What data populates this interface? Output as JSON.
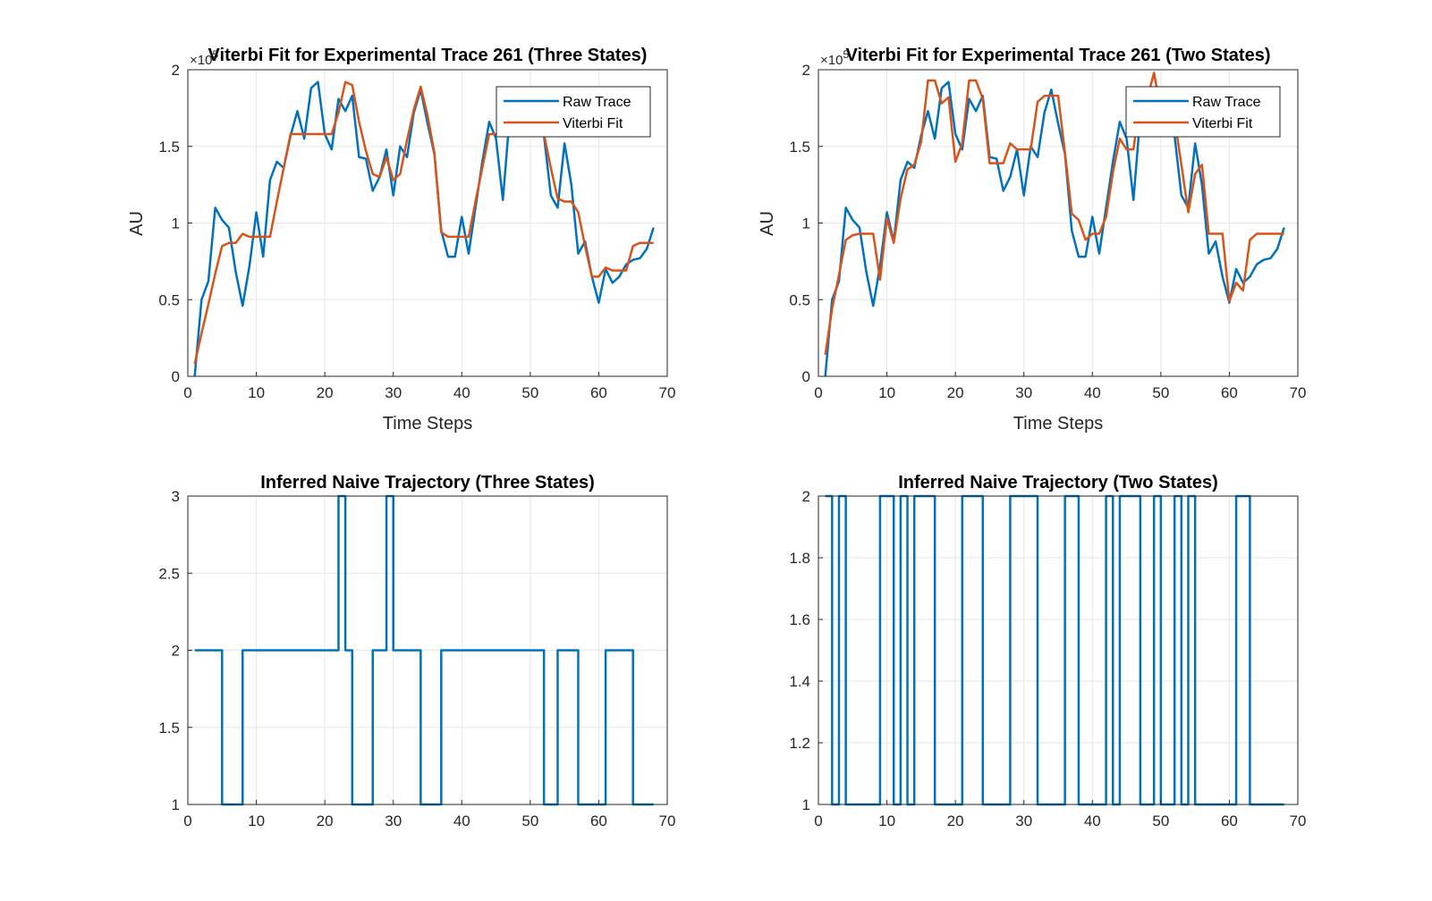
{
  "chart_data": [
    {
      "type": "line",
      "title": "Viterbi Fit for Experimental Trace 261 (Three States)",
      "xlabel": "Time Steps",
      "ylabel": "AU",
      "y_exponent_label": "×10^5",
      "xlim": [
        0,
        70
      ],
      "ylim": [
        0,
        200000
      ],
      "xticks": [
        0,
        10,
        20,
        30,
        40,
        50,
        60,
        70
      ],
      "yticks": [
        0,
        50000,
        100000,
        150000,
        200000
      ],
      "ytick_labels": [
        "0",
        "0.5",
        "1",
        "1.5",
        "2"
      ],
      "grid": true,
      "legend": "top-right",
      "x": [
        1,
        2,
        3,
        4,
        5,
        6,
        7,
        8,
        9,
        10,
        11,
        12,
        13,
        14,
        15,
        16,
        17,
        18,
        19,
        20,
        21,
        22,
        23,
        24,
        25,
        26,
        27,
        28,
        29,
        30,
        31,
        32,
        33,
        34,
        35,
        36,
        37,
        38,
        39,
        40,
        41,
        42,
        43,
        44,
        45,
        46,
        47,
        48,
        49,
        50,
        51,
        52,
        53,
        54,
        55,
        56,
        57,
        58,
        59,
        60,
        61,
        62,
        63,
        64,
        65,
        66,
        67,
        68
      ],
      "series": [
        {
          "name": "Raw Trace",
          "color": "#0072BD",
          "values": [
            0,
            50000,
            62000,
            110000,
            102000,
            97000,
            68000,
            46000,
            72000,
            107000,
            78000,
            128000,
            140000,
            136000,
            157000,
            173000,
            155000,
            188000,
            192000,
            158000,
            148000,
            181000,
            173000,
            183000,
            143000,
            142000,
            121000,
            130000,
            148000,
            118000,
            150000,
            143000,
            172000,
            187000,
            165000,
            145000,
            95000,
            78000,
            78000,
            104000,
            80000,
            110000,
            140000,
            166000,
            155000,
            115000,
            170000,
            177000,
            168000,
            163000,
            162000,
            157000,
            118000,
            110000,
            152000,
            125000,
            80000,
            88000,
            65000,
            48000,
            70000,
            61000,
            65000,
            73000,
            76000,
            77000,
            83000,
            97000
          ]
        },
        {
          "name": "Viterbi Fit",
          "color": "#D95319",
          "values": [
            8000,
            28000,
            47000,
            67000,
            85000,
            87000,
            87000,
            93000,
            91000,
            91000,
            91000,
            91000,
            114000,
            136000,
            158000,
            158000,
            158000,
            158000,
            158000,
            158000,
            158000,
            172000,
            192000,
            190000,
            166000,
            147000,
            132000,
            130000,
            143000,
            128000,
            132000,
            154000,
            174000,
            189000,
            170000,
            146000,
            94000,
            91000,
            91000,
            91000,
            91000,
            114000,
            136000,
            158000,
            158000,
            158000,
            158000,
            158000,
            158000,
            158000,
            158000,
            158000,
            136000,
            116000,
            114000,
            114000,
            107000,
            85000,
            65000,
            65000,
            71000,
            69000,
            69000,
            69000,
            85000,
            87000,
            87000,
            87000
          ]
        }
      ]
    },
    {
      "type": "line",
      "title": "Viterbi Fit for Experimental Trace  261 (Two States)",
      "xlabel": "Time Steps",
      "ylabel": "AU",
      "y_exponent_label": "×10^5",
      "xlim": [
        0,
        70
      ],
      "ylim": [
        0,
        200000
      ],
      "xticks": [
        0,
        10,
        20,
        30,
        40,
        50,
        60,
        70
      ],
      "yticks": [
        0,
        50000,
        100000,
        150000,
        200000
      ],
      "ytick_labels": [
        "0",
        "0.5",
        "1",
        "1.5",
        "2"
      ],
      "grid": true,
      "legend": "top-right",
      "x": [
        1,
        2,
        3,
        4,
        5,
        6,
        7,
        8,
        9,
        10,
        11,
        12,
        13,
        14,
        15,
        16,
        17,
        18,
        19,
        20,
        21,
        22,
        23,
        24,
        25,
        26,
        27,
        28,
        29,
        30,
        31,
        32,
        33,
        34,
        35,
        36,
        37,
        38,
        39,
        40,
        41,
        42,
        43,
        44,
        45,
        46,
        47,
        48,
        49,
        50,
        51,
        52,
        53,
        54,
        55,
        56,
        57,
        58,
        59,
        60,
        61,
        62,
        63,
        64,
        65,
        66,
        67,
        68
      ],
      "series": [
        {
          "name": "Raw Trace",
          "color": "#0072BD",
          "values": [
            0,
            50000,
            62000,
            110000,
            102000,
            97000,
            68000,
            46000,
            72000,
            107000,
            88000,
            128000,
            140000,
            136000,
            157000,
            173000,
            155000,
            188000,
            192000,
            158000,
            148000,
            181000,
            173000,
            183000,
            143000,
            142000,
            121000,
            130000,
            148000,
            118000,
            150000,
            143000,
            172000,
            187000,
            165000,
            145000,
            95000,
            78000,
            78000,
            104000,
            80000,
            110000,
            140000,
            166000,
            155000,
            115000,
            170000,
            177000,
            168000,
            163000,
            162000,
            157000,
            118000,
            110000,
            152000,
            125000,
            80000,
            88000,
            65000,
            48000,
            70000,
            61000,
            65000,
            73000,
            76000,
            77000,
            83000,
            97000
          ]
        },
        {
          "name": "Viterbi Fit",
          "color": "#D95319",
          "values": [
            14000,
            44000,
            66000,
            89000,
            92000,
            93000,
            93000,
            93000,
            63000,
            103000,
            87000,
            116000,
            135000,
            138000,
            153000,
            193000,
            193000,
            178000,
            182000,
            140000,
            152000,
            193000,
            193000,
            181000,
            139000,
            139000,
            139000,
            152000,
            148000,
            148000,
            148000,
            179000,
            183000,
            183000,
            183000,
            146000,
            106000,
            102000,
            89000,
            93000,
            93000,
            104000,
            133000,
            155000,
            148000,
            148000,
            181000,
            181000,
            198000,
            173000,
            162000,
            168000,
            138000,
            107000,
            132000,
            138000,
            93000,
            93000,
            93000,
            49000,
            61000,
            56000,
            89000,
            93000,
            93000,
            93000,
            93000,
            93000
          ]
        }
      ]
    },
    {
      "type": "line",
      "title": "Inferred Naive Trajectory (Three States)",
      "xlabel": "",
      "ylabel": "",
      "xlim": [
        0,
        70
      ],
      "ylim": [
        1,
        3
      ],
      "xticks": [
        0,
        10,
        20,
        30,
        40,
        50,
        60,
        70
      ],
      "yticks": [
        1,
        1.5,
        2,
        2.5,
        3
      ],
      "ytick_labels": [
        "1",
        "1.5",
        "2",
        "2.5",
        "3"
      ],
      "grid": true,
      "step": true,
      "x": [
        1,
        2,
        3,
        4,
        5,
        6,
        7,
        8,
        9,
        10,
        11,
        12,
        13,
        14,
        15,
        16,
        17,
        18,
        19,
        20,
        21,
        22,
        23,
        24,
        25,
        26,
        27,
        28,
        29,
        30,
        31,
        32,
        33,
        34,
        35,
        36,
        37,
        38,
        39,
        40,
        41,
        42,
        43,
        44,
        45,
        46,
        47,
        48,
        49,
        50,
        51,
        52,
        53,
        54,
        55,
        56,
        57,
        58,
        59,
        60,
        61,
        62,
        63,
        64,
        65,
        66,
        67,
        68
      ],
      "series": [
        {
          "name": "",
          "color": "#0072BD",
          "values": [
            2,
            2,
            2,
            2,
            1,
            1,
            1,
            2,
            2,
            2,
            2,
            2,
            2,
            2,
            2,
            2,
            2,
            2,
            2,
            2,
            2,
            3,
            2,
            1,
            1,
            1,
            2,
            2,
            3,
            2,
            2,
            2,
            2,
            1,
            1,
            1,
            2,
            2,
            2,
            2,
            2,
            2,
            2,
            2,
            2,
            2,
            2,
            2,
            2,
            2,
            2,
            1,
            1,
            2,
            2,
            2,
            1,
            1,
            1,
            1,
            2,
            2,
            2,
            2,
            1,
            1,
            1,
            1
          ]
        }
      ]
    },
    {
      "type": "line",
      "title": "Inferred Naive Trajectory (Two States)",
      "xlabel": "",
      "ylabel": "",
      "xlim": [
        0,
        70
      ],
      "ylim": [
        1,
        2
      ],
      "xticks": [
        0,
        10,
        20,
        30,
        40,
        50,
        60,
        70
      ],
      "yticks": [
        1,
        1.2,
        1.4,
        1.6,
        1.8,
        2
      ],
      "ytick_labels": [
        "1",
        "1.2",
        "1.4",
        "1.6",
        "1.8",
        "2"
      ],
      "grid": true,
      "step": true,
      "x": [
        1,
        2,
        3,
        4,
        5,
        6,
        7,
        8,
        9,
        10,
        11,
        12,
        13,
        14,
        15,
        16,
        17,
        18,
        19,
        20,
        21,
        22,
        23,
        24,
        25,
        26,
        27,
        28,
        29,
        30,
        31,
        32,
        33,
        34,
        35,
        36,
        37,
        38,
        39,
        40,
        41,
        42,
        43,
        44,
        45,
        46,
        47,
        48,
        49,
        50,
        51,
        52,
        53,
        54,
        55,
        56,
        57,
        58,
        59,
        60,
        61,
        62,
        63,
        64,
        65,
        66,
        67,
        68
      ],
      "series": [
        {
          "name": "",
          "color": "#0072BD",
          "values": [
            2,
            1,
            2,
            1,
            1,
            1,
            1,
            1,
            2,
            2,
            1,
            2,
            1,
            2,
            2,
            2,
            1,
            1,
            1,
            1,
            2,
            2,
            2,
            1,
            1,
            1,
            1,
            2,
            2,
            2,
            2,
            1,
            1,
            1,
            1,
            2,
            2,
            1,
            1,
            1,
            1,
            2,
            1,
            2,
            2,
            2,
            1,
            1,
            2,
            1,
            1,
            2,
            1,
            2,
            1,
            1,
            1,
            1,
            1,
            1,
            2,
            2,
            1,
            1,
            1,
            1,
            1,
            1
          ]
        }
      ]
    }
  ]
}
